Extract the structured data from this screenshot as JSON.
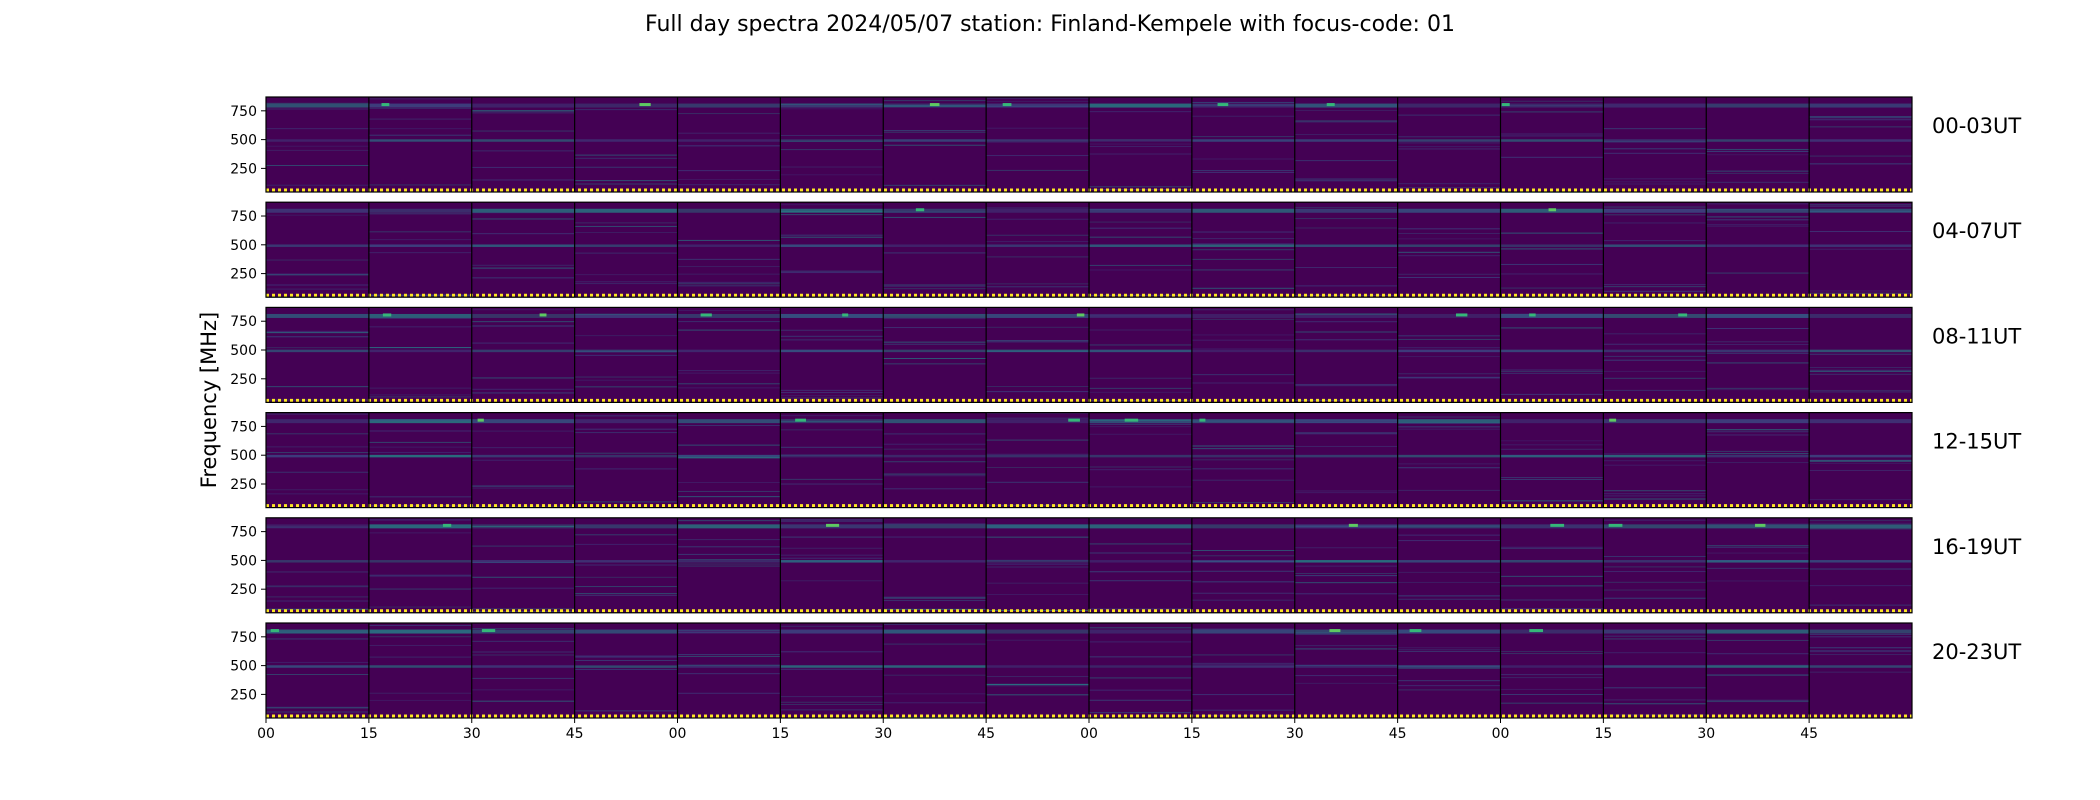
{
  "figure": {
    "title": "Full day spectra 2024/05/07 station: Finland-Kempele with focus-code: 01"
  },
  "chart_data": {
    "type": "heatmap",
    "colormap": "viridis",
    "background_color": "#440154",
    "ylabel": "Frequency [MHz]",
    "yticks": [
      250,
      500,
      750
    ],
    "yrange": [
      45,
      870
    ],
    "xtick_labels": [
      "00",
      "15",
      "30",
      "45",
      "00",
      "15",
      "30",
      "45",
      "00",
      "15",
      "30",
      "45",
      "00",
      "15",
      "30",
      "45"
    ],
    "rows": [
      {
        "label": "00-03UT",
        "panels": 16
      },
      {
        "label": "04-07UT",
        "panels": 16
      },
      {
        "label": "08-11UT",
        "panels": 16
      },
      {
        "label": "12-15UT",
        "panels": 16
      },
      {
        "label": "16-19UT",
        "panels": 16
      },
      {
        "label": "20-23UT",
        "panels": 16
      }
    ],
    "persistent_bands_mhz": [
      800,
      490
    ],
    "grid": false,
    "legend": "none"
  }
}
